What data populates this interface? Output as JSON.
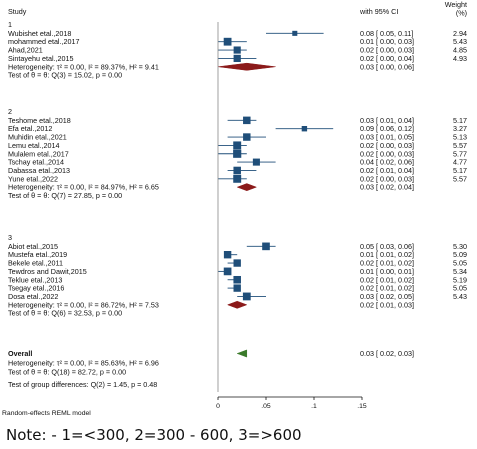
{
  "chart_data": {
    "type": "forest",
    "header": {
      "study": "Study",
      "ci": "with 95% CI",
      "weight_line1": "Weight",
      "weight_line2": "(%)"
    },
    "xaxis": {
      "ticks": [
        0,
        0.05,
        0.1,
        0.15
      ],
      "tick_labels": [
        "0",
        ".05",
        ".1",
        ".15"
      ],
      "xlim": [
        0,
        0.15
      ]
    },
    "colors": {
      "study_marker": "#1f4e79",
      "pooled_diamond": "#8b1a1a",
      "overall_diamond": "#3a7a2a",
      "zero_line": "#888888"
    },
    "groups": [
      {
        "label": "1",
        "studies": [
          {
            "name": "Wubishet etal.,2018",
            "est": 0.08,
            "lo": 0.05,
            "hi": 0.11,
            "ci_text": "0.08 [ 0.05, 0.11]",
            "weight": "2.94"
          },
          {
            "name": "mohammed etal.,2017",
            "est": 0.01,
            "lo": 0.0,
            "hi": 0.03,
            "ci_text": "0.01 [ 0.00, 0.03]",
            "weight": "5.43"
          },
          {
            "name": "Ahad,2021",
            "est": 0.02,
            "lo": 0.0,
            "hi": 0.03,
            "ci_text": "0.02 [ 0.00, 0.03]",
            "weight": "4.85"
          },
          {
            "name": "Sintayehu etal.,2015",
            "est": 0.02,
            "lo": 0.0,
            "hi": 0.04,
            "ci_text": "0.02 [ 0.00, 0.04]",
            "weight": "4.93"
          }
        ],
        "heterogeneity": "Heterogeneity: τ² = 0.00, I² = 89.37%, H² = 9.41",
        "test": "Test of θ = θ: Q(3) = 15.02, p = 0.00",
        "pooled": {
          "est": 0.03,
          "lo": 0.0,
          "hi": 0.06,
          "ci_text": "0.03 [ 0.00, 0.06]"
        }
      },
      {
        "label": "2",
        "studies": [
          {
            "name": "Teshome etal.,2018",
            "est": 0.03,
            "lo": 0.01,
            "hi": 0.04,
            "ci_text": "0.03 [ 0.01, 0.04]",
            "weight": "5.17"
          },
          {
            "name": "Efa etal.,2012",
            "est": 0.09,
            "lo": 0.06,
            "hi": 0.12,
            "ci_text": "0.09 [ 0.06, 0.12]",
            "weight": "3.27"
          },
          {
            "name": "Muhidin etal.,2021",
            "est": 0.03,
            "lo": 0.01,
            "hi": 0.05,
            "ci_text": "0.03 [ 0.01, 0.05]",
            "weight": "5.13"
          },
          {
            "name": "Lemu etal.,2014",
            "est": 0.02,
            "lo": 0.0,
            "hi": 0.03,
            "ci_text": "0.02 [ 0.00, 0.03]",
            "weight": "5.57"
          },
          {
            "name": "Mulalem etal.,2017",
            "est": 0.02,
            "lo": 0.0,
            "hi": 0.03,
            "ci_text": "0.02 [ 0.00, 0.03]",
            "weight": "5.77"
          },
          {
            "name": "Tschay etal.,2014",
            "est": 0.04,
            "lo": 0.02,
            "hi": 0.06,
            "ci_text": "0.04 [ 0.02, 0.06]",
            "weight": "4.77"
          },
          {
            "name": "Dabassa etal.,2013",
            "est": 0.02,
            "lo": 0.01,
            "hi": 0.04,
            "ci_text": "0.02 [ 0.01, 0.04]",
            "weight": "5.17"
          },
          {
            "name": "Yune etal.,2022",
            "est": 0.02,
            "lo": 0.0,
            "hi": 0.03,
            "ci_text": "0.02 [ 0.00, 0.03]",
            "weight": "5.57"
          }
        ],
        "heterogeneity": "Heterogeneity: τ² = 0.00, I² = 84.97%, H² = 6.65",
        "test": "Test of θ = θ: Q(7) = 27.85, p = 0.00",
        "pooled": {
          "est": 0.03,
          "lo": 0.02,
          "hi": 0.04,
          "ci_text": "0.03 [ 0.02, 0.04]"
        }
      },
      {
        "label": "3",
        "studies": [
          {
            "name": "Abiot etal.,2015",
            "est": 0.05,
            "lo": 0.03,
            "hi": 0.06,
            "ci_text": "0.05 [ 0.03, 0.06]",
            "weight": "5.30"
          },
          {
            "name": "Mustefa etal.,2019",
            "est": 0.01,
            "lo": 0.01,
            "hi": 0.02,
            "ci_text": "0.01 [ 0.01, 0.02]",
            "weight": "5.09"
          },
          {
            "name": "Bekele etal.,2011",
            "est": 0.02,
            "lo": 0.01,
            "hi": 0.02,
            "ci_text": "0.02 [ 0.01, 0.02]",
            "weight": "5.05"
          },
          {
            "name": "Tewdros and Dawit,2015",
            "est": 0.01,
            "lo": 0.0,
            "hi": 0.01,
            "ci_text": "0.01 [ 0.00, 0.01]",
            "weight": "5.34"
          },
          {
            "name": "Teklue etal.,2013",
            "est": 0.02,
            "lo": 0.01,
            "hi": 0.02,
            "ci_text": "0.02 [ 0.01, 0.02]",
            "weight": "5.19"
          },
          {
            "name": "Tsegay etal.,2016",
            "est": 0.02,
            "lo": 0.01,
            "hi": 0.02,
            "ci_text": "0.02 [ 0.01, 0.02]",
            "weight": "5.05"
          },
          {
            "name": "Dosa etal.,2022",
            "est": 0.03,
            "lo": 0.02,
            "hi": 0.05,
            "ci_text": "0.03 [ 0.02, 0.05]",
            "weight": "5.43"
          }
        ],
        "heterogeneity": "Heterogeneity: τ² = 0.00, I² = 86.72%, H² = 7.53",
        "test": "Test of θ = θ: Q(6) = 32.53, p = 0.00",
        "pooled": {
          "est": 0.02,
          "lo": 0.01,
          "hi": 0.03,
          "ci_text": "0.02 [ 0.01, 0.03]"
        }
      }
    ],
    "overall": {
      "label": "Overall",
      "est": 0.03,
      "lo": 0.02,
      "hi": 0.03,
      "ci_text": "0.03 [ 0.02, 0.03]",
      "heterogeneity": "Heterogeneity: τ² = 0.00, I² = 85.63%, H² = 6.96",
      "test": "Test of θ = θ: Q(18) = 82.72, p = 0.00",
      "group_test": "Test of group differences: Q(2) = 1.45, p = 0.48"
    },
    "footer": "Random-effects REML model"
  },
  "note": "Note: - 1=<300, 2=300 - 600, 3=>600"
}
